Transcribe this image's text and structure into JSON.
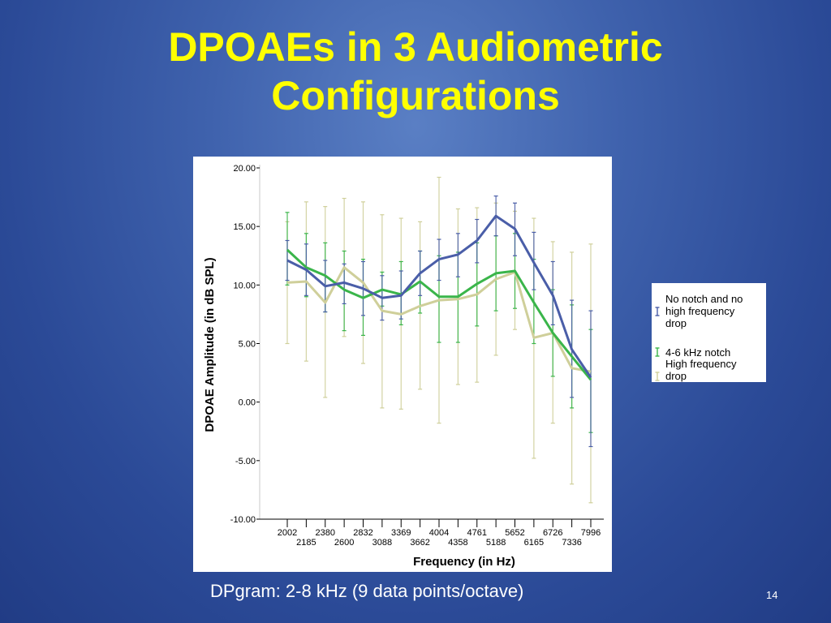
{
  "slide": {
    "title_line1": "DPOAEs in 3 Audiometric",
    "title_line2": "Configurations",
    "caption": "DPgram: 2-8 kHz (9 data points/octave)",
    "page_number": "14"
  },
  "colors": {
    "title": "#ffff00",
    "series_no_notch": "#4a5ea8",
    "series_notch": "#3ab54a",
    "series_high_freq": "#cfcf9a"
  },
  "chart_data": {
    "type": "line",
    "xlabel": "Frequency (in Hz)",
    "ylabel": "DPOAE Amplitude (in dB SPL)",
    "ylim": [
      -10,
      20
    ],
    "yticks": [
      "-10.00",
      "-5.00",
      "0.00",
      "5.00",
      "10.00",
      "15.00",
      "20.00"
    ],
    "x_tick_labels_row1": [
      "2002",
      "2380",
      "2832",
      "3369",
      "4004",
      "4761",
      "5652",
      "6726",
      "7996"
    ],
    "x_tick_labels_row2": [
      "2185",
      "2600",
      "3088",
      "3662",
      "4358",
      "5188",
      "6165",
      "7336"
    ],
    "x": [
      "2002",
      "2185",
      "2380",
      "2600",
      "2832",
      "3088",
      "3369",
      "3662",
      "4004",
      "4358",
      "4761",
      "5188",
      "5652",
      "6165",
      "6726",
      "7336",
      "7996"
    ],
    "legend_position": "right",
    "series": [
      {
        "name": "No notch and no high frequency drop",
        "legend_lines": [
          "No notch and no",
          "high frequency",
          "drop"
        ],
        "color": "#4a5ea8",
        "values": [
          12.1,
          11.3,
          9.9,
          10.2,
          9.7,
          8.9,
          9.1,
          11.0,
          12.2,
          12.6,
          13.8,
          15.9,
          14.8,
          11.9,
          9.1,
          4.5,
          2.1
        ],
        "err_low": [
          10.4,
          9.1,
          7.7,
          8.4,
          7.4,
          7.0,
          7.1,
          9.1,
          10.4,
          10.7,
          11.9,
          14.2,
          12.5,
          9.6,
          6.6,
          0.4,
          -3.8
        ],
        "err_high": [
          13.8,
          13.5,
          12.1,
          11.8,
          12.0,
          10.8,
          11.2,
          12.9,
          13.9,
          14.4,
          15.6,
          17.6,
          17.0,
          14.5,
          12.0,
          8.7,
          7.8
        ]
      },
      {
        "name": "4-6 kHz notch",
        "legend_lines": [
          "4-6 kHz notch"
        ],
        "color": "#3ab54a",
        "values": [
          13.0,
          11.5,
          10.8,
          9.6,
          8.9,
          9.6,
          9.2,
          10.3,
          9.0,
          9.0,
          10.1,
          11.0,
          11.2,
          8.5,
          5.9,
          3.9,
          1.9
        ],
        "err_low": [
          10.0,
          9.0,
          7.7,
          6.1,
          5.7,
          8.2,
          6.6,
          7.6,
          5.1,
          5.1,
          6.5,
          7.8,
          8.0,
          5.0,
          2.2,
          -0.5,
          -2.6
        ],
        "err_high": [
          16.2,
          14.4,
          13.6,
          12.9,
          12.2,
          11.1,
          12.0,
          12.9,
          12.5,
          12.8,
          13.6,
          14.2,
          14.4,
          12.2,
          9.6,
          8.3,
          6.2
        ]
      },
      {
        "name": "High frequency drop",
        "legend_lines": [
          "High frequency",
          "drop"
        ],
        "color": "#cfcf9a",
        "values": [
          10.2,
          10.3,
          8.5,
          11.5,
          10.2,
          7.8,
          7.5,
          8.2,
          8.7,
          8.8,
          9.2,
          10.5,
          11.1,
          5.5,
          5.9,
          2.9,
          2.6
        ],
        "err_low": [
          5.0,
          3.5,
          0.4,
          5.6,
          3.3,
          -0.5,
          -0.6,
          1.1,
          -1.8,
          1.5,
          1.7,
          4.0,
          6.2,
          -4.8,
          -1.8,
          -7.0,
          -8.6
        ],
        "err_high": [
          15.4,
          17.1,
          16.7,
          17.4,
          17.1,
          16.0,
          15.7,
          15.4,
          19.2,
          16.5,
          16.6,
          17.0,
          16.3,
          15.7,
          13.7,
          12.8,
          13.5
        ]
      }
    ]
  }
}
